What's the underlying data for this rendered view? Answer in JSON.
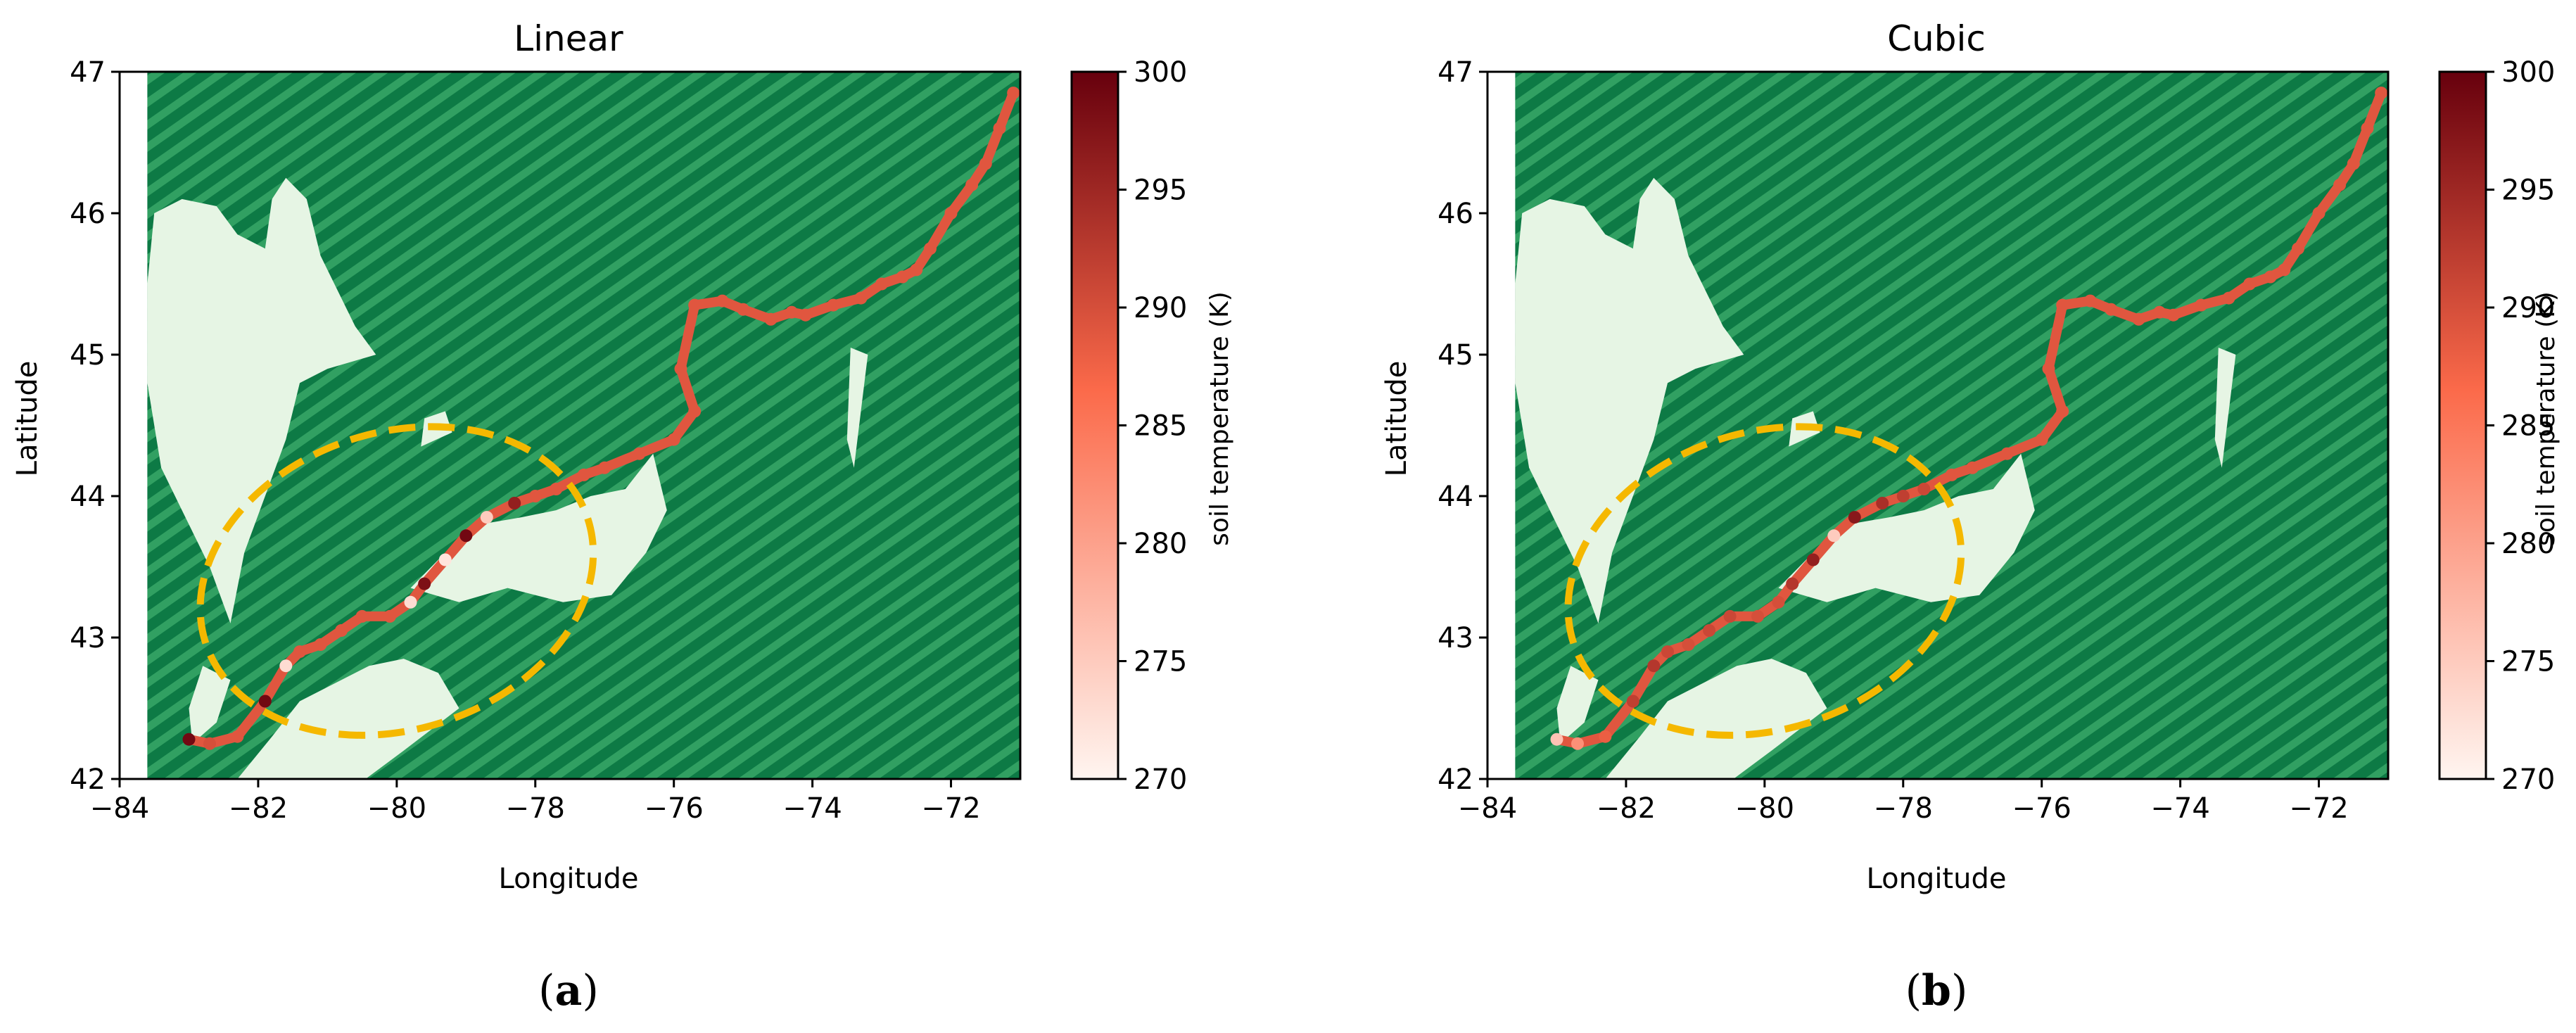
{
  "colors": {
    "land_dark": "#0d7a45",
    "land_light": "#31a062",
    "water": "#e6f5e4",
    "ellipse": "#f5b800",
    "cmap_low": "#fff5f0",
    "cmap_mid": "#fb6a4a",
    "cmap_high": "#67000d"
  },
  "chart_data": [
    {
      "type": "scatter",
      "panel_label": "a",
      "title": "Linear",
      "xlabel": "Longitude",
      "ylabel": "Latitude",
      "xlim": [
        -84,
        -71
      ],
      "ylim": [
        42,
        47
      ],
      "x_ticks": [
        -84,
        -82,
        -80,
        -78,
        -76,
        -74,
        -72
      ],
      "y_ticks": [
        42,
        43,
        44,
        45,
        46,
        47
      ],
      "colorbar": {
        "label": "soil temperature (K)",
        "range": [
          270,
          300
        ],
        "ticks": [
          270,
          275,
          280,
          285,
          290,
          295,
          300
        ],
        "cmap": "Reds"
      },
      "background": {
        "variable": "land/water mask",
        "cmap": "Greens",
        "extent_lon": [
          -83.6,
          -71.0
        ]
      },
      "highlight_ellipse": {
        "center_lon": -80.0,
        "center_lat": 43.4,
        "lon_semi_axis": 2.9,
        "lat_semi_axis": 1.05
      },
      "track": {
        "lon": [
          -71.1,
          -71.3,
          -71.5,
          -71.7,
          -72.0,
          -72.3,
          -72.5,
          -72.7,
          -73.0,
          -73.3,
          -73.7,
          -74.1,
          -74.3,
          -74.6,
          -75.0,
          -75.3,
          -75.7,
          -75.9,
          -75.7,
          -76.0,
          -76.5,
          -77.0,
          -77.3,
          -77.7,
          -78.0,
          -78.3,
          -78.7,
          -79.0,
          -79.3,
          -79.6,
          -79.8,
          -80.1,
          -80.5,
          -80.8,
          -81.1,
          -81.4,
          -81.6,
          -81.9,
          -82.3,
          -82.7,
          -83.0
        ],
        "lat": [
          46.85,
          46.6,
          46.35,
          46.2,
          46.0,
          45.75,
          45.6,
          45.55,
          45.5,
          45.4,
          45.35,
          45.28,
          45.3,
          45.25,
          45.32,
          45.38,
          45.35,
          44.9,
          44.6,
          44.4,
          44.3,
          44.2,
          44.15,
          44.05,
          44.0,
          43.95,
          43.85,
          43.72,
          43.55,
          43.38,
          43.25,
          43.15,
          43.15,
          43.05,
          42.95,
          42.9,
          42.8,
          42.55,
          42.3,
          42.25,
          42.28
        ],
        "soil_temperature": [
          289,
          289,
          289,
          289,
          289,
          289,
          289,
          289,
          289,
          289,
          289,
          289,
          289,
          289,
          289,
          289,
          289,
          289,
          289,
          289,
          289,
          289,
          289,
          289,
          289,
          296,
          275,
          299,
          272,
          298,
          273,
          289,
          289,
          289,
          289,
          289,
          273,
          299,
          289,
          290,
          299
        ]
      }
    },
    {
      "type": "scatter",
      "panel_label": "b",
      "title": "Cubic",
      "xlabel": "Longitude",
      "ylabel": "Latitude",
      "xlim": [
        -84,
        -71
      ],
      "ylim": [
        42,
        47
      ],
      "x_ticks": [
        -84,
        -82,
        -80,
        -78,
        -76,
        -74,
        -72
      ],
      "y_ticks": [
        42,
        43,
        44,
        45,
        46,
        47
      ],
      "colorbar": {
        "label": "soil temperature (K)",
        "range": [
          270,
          300
        ],
        "ticks": [
          270,
          275,
          280,
          285,
          290,
          295,
          300
        ],
        "cmap": "Reds"
      },
      "background": {
        "variable": "land/water mask",
        "cmap": "Greens",
        "extent_lon": [
          -83.6,
          -71.0
        ]
      },
      "highlight_ellipse": {
        "center_lon": -80.0,
        "center_lat": 43.4,
        "lon_semi_axis": 2.9,
        "lat_semi_axis": 1.05
      },
      "track": {
        "lon": [
          -71.1,
          -71.3,
          -71.5,
          -71.7,
          -72.0,
          -72.3,
          -72.5,
          -72.7,
          -73.0,
          -73.3,
          -73.7,
          -74.1,
          -74.3,
          -74.6,
          -75.0,
          -75.3,
          -75.7,
          -75.9,
          -75.7,
          -76.0,
          -76.5,
          -77.0,
          -77.3,
          -77.7,
          -78.0,
          -78.3,
          -78.7,
          -79.0,
          -79.3,
          -79.6,
          -79.8,
          -80.1,
          -80.5,
          -80.8,
          -81.1,
          -81.4,
          -81.6,
          -81.9,
          -82.3,
          -82.7,
          -83.0
        ],
        "lat": [
          46.85,
          46.6,
          46.35,
          46.2,
          46.0,
          45.75,
          45.6,
          45.55,
          45.5,
          45.4,
          45.35,
          45.28,
          45.3,
          45.25,
          45.32,
          45.38,
          45.35,
          44.9,
          44.6,
          44.4,
          44.3,
          44.2,
          44.15,
          44.05,
          44.0,
          43.95,
          43.85,
          43.72,
          43.55,
          43.38,
          43.25,
          43.15,
          43.15,
          43.05,
          42.95,
          42.9,
          42.8,
          42.55,
          42.3,
          42.25,
          42.28
        ],
        "soil_temperature": [
          289,
          289,
          289,
          289,
          289,
          289,
          289,
          289,
          289,
          289,
          289,
          289,
          289,
          289,
          289,
          289,
          289,
          289,
          289,
          289,
          289,
          289,
          289,
          291,
          292,
          294,
          297,
          275,
          296,
          293,
          290,
          290,
          291,
          291,
          290,
          291,
          293,
          292,
          288,
          282,
          276
        ]
      }
    }
  ]
}
